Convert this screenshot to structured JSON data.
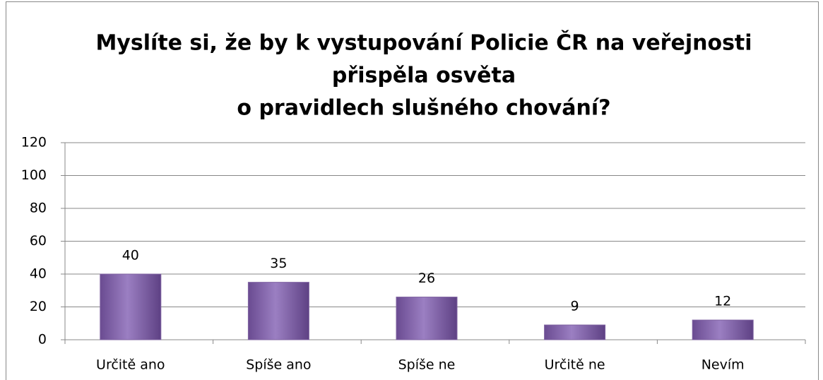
{
  "chart_data": {
    "type": "bar",
    "title": [
      "Myslíte si, že by k vystupování Policie ČR na veřejnosti",
      "přispěla osvěta",
      "o pravidlech slušného chování?"
    ],
    "categories": [
      "Určitě ano",
      "Spíše ano",
      "Spíše ne",
      "Určitě ne",
      "Nevím"
    ],
    "values": [
      40,
      35,
      26,
      9,
      12
    ],
    "color": "#8064a2",
    "ylim": [
      0,
      120
    ],
    "yticks": [
      0,
      20,
      40,
      60,
      80,
      100,
      120
    ],
    "grid": true
  }
}
